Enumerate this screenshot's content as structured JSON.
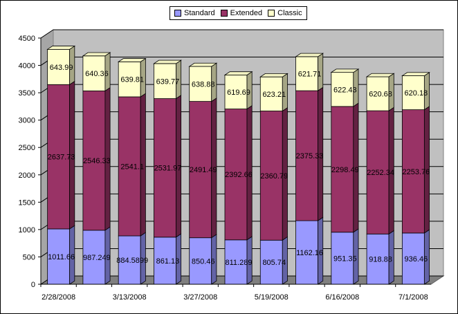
{
  "chart_data": {
    "type": "bar",
    "stacked": true,
    "style_3d": true,
    "categories": [
      "2/28/2008",
      "",
      "3/13/2008",
      "",
      "3/27/2008",
      "",
      "5/19/2008",
      "",
      "6/16/2008",
      "",
      "7/1/2008"
    ],
    "series": [
      {
        "name": "Standard",
        "color": "#9999FF",
        "values": [
          1011.66,
          987.249,
          884.5899,
          861.13,
          850.46,
          811.289,
          805.74,
          1162.16,
          951.35,
          918.88,
          936.46
        ],
        "labels": [
          "1011.66",
          "987.249",
          "884.5899",
          "861.13",
          "850.46",
          "811.289",
          "805.74",
          "1162.16",
          "951.35",
          "918.88",
          "936.46"
        ]
      },
      {
        "name": "Extended",
        "color": "#993366",
        "values": [
          2637.73,
          2546.33,
          2541.1,
          2531.97,
          2491.49,
          2392.66,
          2360.79,
          2375.33,
          2298.49,
          2252.34,
          2253.76
        ],
        "labels": [
          "2637.73",
          "2546.33",
          "2541.1",
          "2531.97",
          "2491.49",
          "2392.66",
          "2360.79",
          "2375.33",
          "2298.49",
          "2252.34",
          "2253.76"
        ]
      },
      {
        "name": "Classic",
        "color": "#FFFFCC",
        "values": [
          643.99,
          640.36,
          639.81,
          639.77,
          638.88,
          619.69,
          623.21,
          621.71,
          622.43,
          620.68,
          620.18
        ],
        "labels": [
          "643.99",
          "640.36",
          "639.81",
          "639.77",
          "638.88",
          "619.69",
          "623.21",
          "621.71",
          "622.43",
          "620.68",
          "620.18"
        ]
      }
    ],
    "ylim": [
      0,
      4500
    ],
    "yticks": [
      "0",
      "500",
      "1000",
      "1500",
      "2000",
      "2500",
      "3000",
      "3500",
      "4000",
      "4500"
    ],
    "xlabel": "",
    "ylabel": "",
    "title": "",
    "grid": true,
    "legend_position": "top-center",
    "wall_color": "#C0C0C0",
    "floor_color": "#808080"
  }
}
